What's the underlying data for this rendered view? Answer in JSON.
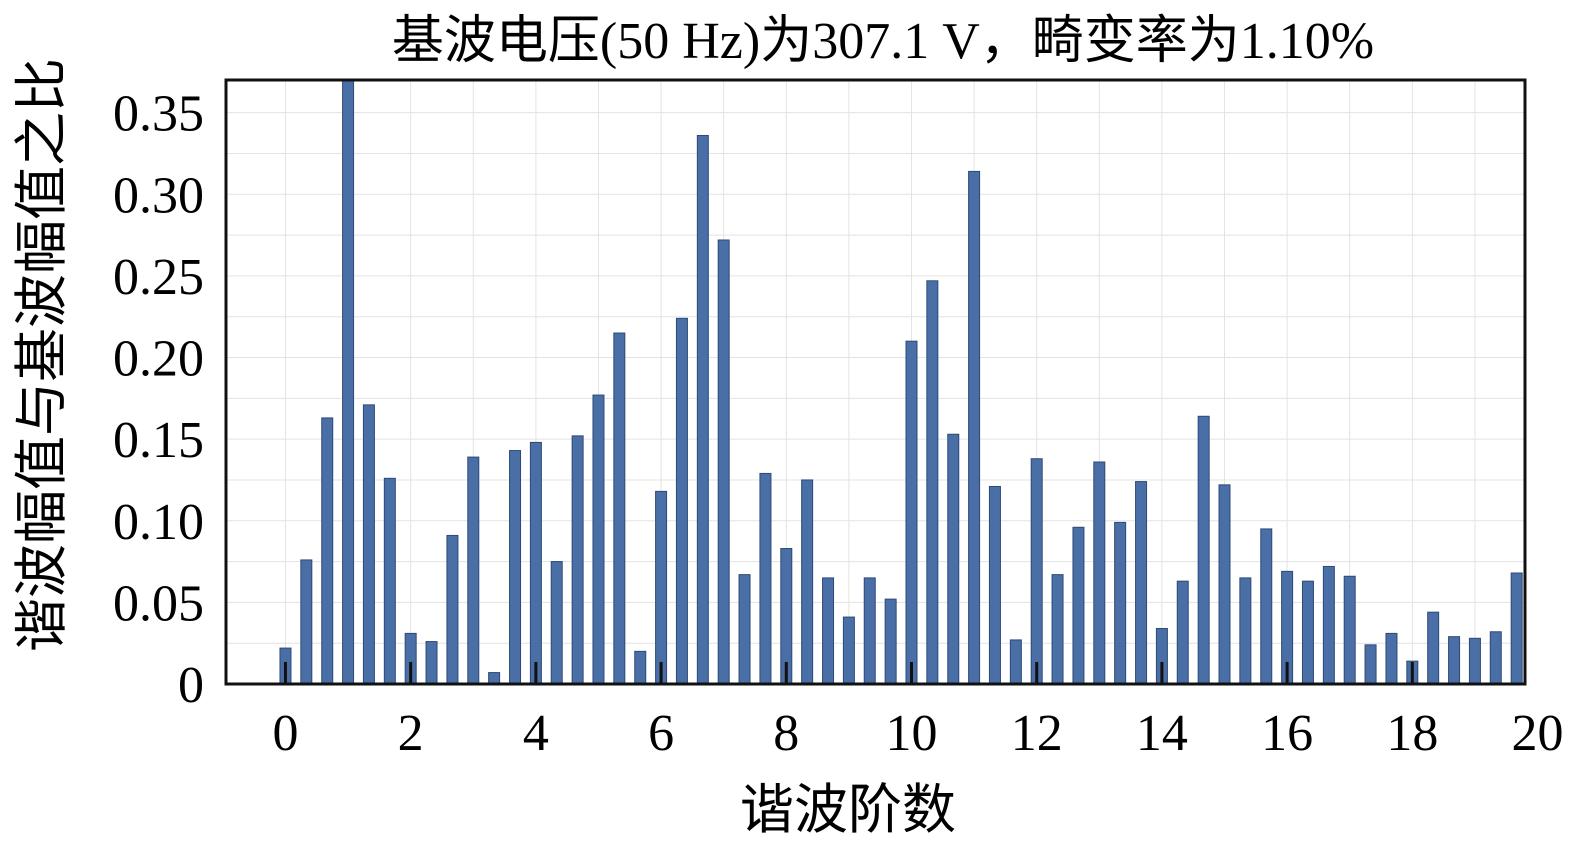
{
  "chart_data": {
    "type": "bar",
    "title": "基波电压(50 Hz)为307.1 V，畸变率为1.10%",
    "xlabel": "谐波阶数",
    "ylabel": "谐波幅值与基波幅值之比",
    "xlim": [
      -0.95,
      19.8
    ],
    "ylim": [
      0,
      0.37
    ],
    "xticks": [
      0,
      2,
      4,
      6,
      8,
      10,
      12,
      14,
      16,
      18,
      20
    ],
    "yticks": [
      0,
      0.05,
      0.1,
      0.15,
      0.2,
      0.25,
      0.3,
      0.35
    ],
    "ytick_labels": [
      "0",
      "0.05",
      "0.10",
      "0.15",
      "0.20",
      "0.25",
      "0.30",
      "0.35"
    ],
    "grid": true,
    "x": [
      0,
      0.333,
      0.667,
      1,
      1.333,
      1.667,
      2,
      2.333,
      2.667,
      3,
      3.333,
      3.667,
      4,
      4.333,
      4.667,
      5,
      5.333,
      5.667,
      6,
      6.333,
      6.667,
      7,
      7.333,
      7.667,
      8,
      8.333,
      8.667,
      9,
      9.333,
      9.667,
      10,
      10.333,
      10.667,
      11,
      11.333,
      11.667,
      12,
      12.333,
      12.667,
      13,
      13.333,
      13.667,
      14,
      14.333,
      14.667,
      15,
      15.333,
      15.667,
      16,
      16.333,
      16.667,
      17,
      17.333,
      17.667,
      18,
      18.333,
      18.667,
      19,
      19.333,
      19.667
    ],
    "values": [
      0.022,
      0.076,
      0.163,
      0.37,
      0.171,
      0.126,
      0.031,
      0.026,
      0.091,
      0.139,
      0.007,
      0.143,
      0.148,
      0.075,
      0.152,
      0.177,
      0.215,
      0.02,
      0.118,
      0.224,
      0.336,
      0.272,
      0.067,
      0.129,
      0.083,
      0.125,
      0.065,
      0.041,
      0.065,
      0.052,
      0.21,
      0.247,
      0.153,
      0.314,
      0.121,
      0.027,
      0.138,
      0.067,
      0.096,
      0.136,
      0.099,
      0.124,
      0.034,
      0.063,
      0.164,
      0.122,
      0.065,
      0.095,
      0.069,
      0.063,
      0.072,
      0.066,
      0.024,
      0.031,
      0.014,
      0.044,
      0.029,
      0.028,
      0.032,
      0.068
    ]
  }
}
